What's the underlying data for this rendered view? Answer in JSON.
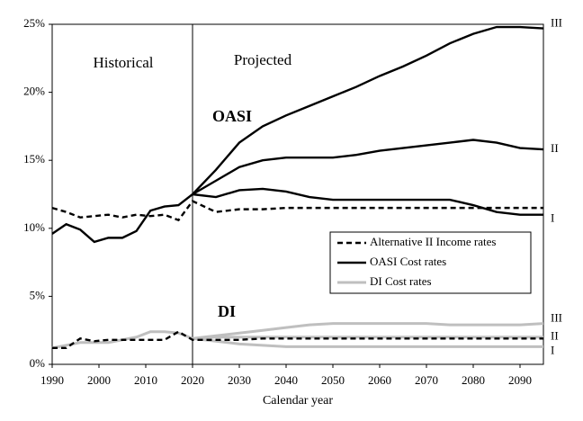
{
  "chart_data": {
    "type": "line",
    "x_label": "Calendar year",
    "annotations": [
      "Historical",
      "Projected",
      "OASI",
      "DI"
    ],
    "x": [
      1990,
      1993,
      1996,
      1999,
      2002,
      2005,
      2008,
      2011,
      2014,
      2017,
      2020,
      2025,
      2030,
      2035,
      2040,
      2045,
      2050,
      2055,
      2060,
      2065,
      2070,
      2075,
      2080,
      2085,
      2090,
      2095
    ],
    "xlim": [
      1990,
      2095
    ],
    "xticks": [
      1990,
      2000,
      2010,
      2020,
      2030,
      2040,
      2050,
      2060,
      2070,
      2080,
      2090
    ],
    "ylim": [
      0,
      25
    ],
    "yticks": [
      {
        "value": 0,
        "label": "0%"
      },
      {
        "value": 5,
        "label": "5%"
      },
      {
        "value": 10,
        "label": "10%"
      },
      {
        "value": 15,
        "label": "15%"
      },
      {
        "value": 20,
        "label": "20%"
      },
      {
        "value": 25,
        "label": "25%"
      }
    ],
    "divider_x": 2020,
    "series": [
      {
        "name": "Alternative II Income rates",
        "color": "#000000",
        "dash": true,
        "values": [
          11.5,
          11.2,
          10.8,
          10.9,
          11.0,
          10.8,
          11.0,
          10.9,
          11.0,
          10.6,
          12.0,
          11.2,
          11.4,
          11.4,
          11.5,
          11.5,
          11.5,
          11.5,
          11.5,
          11.5,
          11.5,
          11.5,
          11.5,
          11.5,
          11.5,
          11.5
        ]
      },
      {
        "name": "OASI Cost rates",
        "color": "#000000",
        "end_label": "III",
        "values": [
          9.6,
          10.3,
          9.9,
          9.0,
          9.3,
          9.3,
          9.8,
          11.3,
          11.6,
          11.7,
          12.5,
          14.3,
          16.3,
          17.5,
          18.3,
          19.0,
          19.7,
          20.4,
          21.2,
          21.9,
          22.7,
          23.6,
          24.3,
          24.8,
          24.8,
          24.7
        ]
      },
      {
        "color": "#000000",
        "end_label": "II",
        "values": [
          null,
          null,
          null,
          null,
          null,
          null,
          null,
          null,
          null,
          null,
          12.5,
          13.5,
          14.5,
          15.0,
          15.2,
          15.2,
          15.2,
          15.4,
          15.7,
          15.9,
          16.1,
          16.3,
          16.5,
          16.3,
          15.9,
          15.8
        ]
      },
      {
        "color": "#000000",
        "end_label": "I",
        "values": [
          null,
          null,
          null,
          null,
          null,
          null,
          null,
          null,
          null,
          null,
          12.5,
          12.3,
          12.8,
          12.9,
          12.7,
          12.3,
          12.1,
          12.1,
          12.1,
          12.1,
          12.1,
          12.1,
          11.7,
          11.2,
          11.0,
          11.0
        ]
      },
      {
        "name": "DI Cost rates",
        "color": "#bfbfbf",
        "end_label": "III",
        "values": [
          1.2,
          1.4,
          1.6,
          1.6,
          1.6,
          1.8,
          2.0,
          2.4,
          2.4,
          2.3,
          1.9,
          2.1,
          2.3,
          2.5,
          2.7,
          2.9,
          3.0,
          3.0,
          3.0,
          3.0,
          3.0,
          2.9,
          2.9,
          2.9,
          2.9,
          3.0
        ]
      },
      {
        "color": "#bfbfbf",
        "end_label": "II",
        "values": [
          null,
          null,
          null,
          null,
          null,
          null,
          null,
          null,
          null,
          null,
          1.9,
          2.0,
          2.0,
          2.0,
          2.0,
          2.0,
          2.0,
          2.0,
          2.0,
          2.0,
          2.0,
          2.0,
          2.0,
          2.0,
          2.0,
          2.0
        ]
      },
      {
        "color": "#bfbfbf",
        "end_label": "I",
        "values": [
          null,
          null,
          null,
          null,
          null,
          null,
          null,
          null,
          null,
          null,
          1.9,
          1.7,
          1.5,
          1.4,
          1.3,
          1.3,
          1.3,
          1.3,
          1.3,
          1.3,
          1.3,
          1.3,
          1.3,
          1.3,
          1.3,
          1.3
        ]
      },
      {
        "color": "#000000",
        "dash": true,
        "values": [
          1.2,
          1.2,
          1.9,
          1.7,
          1.8,
          1.8,
          1.8,
          1.8,
          1.8,
          2.4,
          1.8,
          1.8,
          1.8,
          1.9,
          1.9,
          1.9,
          1.9,
          1.9,
          1.9,
          1.9,
          1.9,
          1.9,
          1.9,
          1.9,
          1.9,
          1.9
        ]
      }
    ]
  }
}
